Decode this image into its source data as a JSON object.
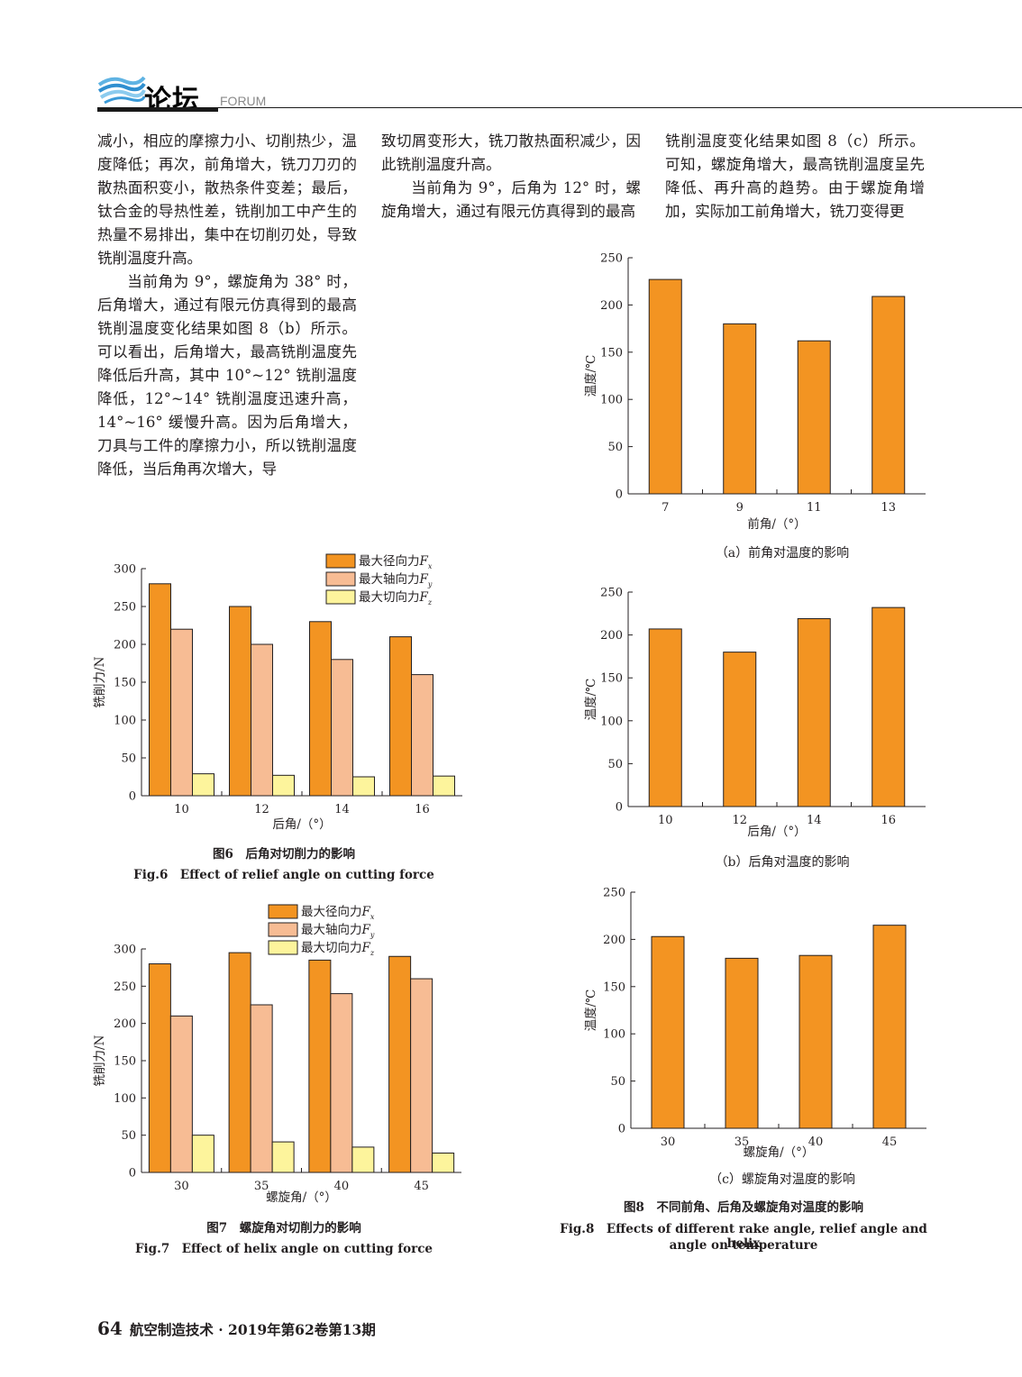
{
  "header": {
    "title": "论坛",
    "subtitle": "FORUM"
  },
  "text": {
    "col1_p1": "减小，相应的摩擦力小、切削热少，温度降低；再次，前角增大，铣刀刀刃的散热面积变小，散热条件变差；最后，钛合金的导热性差，铣削加工中产生的热量不易排出，集中在切削刃处，导致铣削温度升高。",
    "col1_p2": "当前角为 9°，螺旋角为 38° 时，后角增大，通过有限元仿真得到的最高铣削温度变化结果如图 8（b）所示。可以看出，后角增大，最高铣削温度先降低后升高，其中 10°~12° 铣削温度降低，12°~14° 铣削温度迅速升高，14°~16° 缓慢升高。因为后角增大，刀具与工件的摩擦力小，所以铣削温度降低，当后角再次增大，导",
    "col2_p1": "致切屑变形大，铣刀散热面积减少，因此铣削温度升高。",
    "col2_p2": "当前角为 9°，后角为 12° 时，螺旋角增大，通过有限元仿真得到的最高",
    "col3_p1": "铣削温度变化结果如图 8（c）所示。可知，螺旋角增大，最高铣削温度呈先降低、再升高的趋势。由于螺旋角增加，实际加工前角增大，铣刀变得更"
  },
  "colors": {
    "orange": "#f39422",
    "salmon": "#f7bc94",
    "yellow": "#fdf49c"
  },
  "chart_data": [
    {
      "id": "fig8a",
      "type": "bar",
      "categories": [
        "7",
        "9",
        "11",
        "13"
      ],
      "series": [
        {
          "values": [
            227,
            180,
            162,
            209
          ]
        }
      ],
      "ylim": [
        0,
        250
      ],
      "yticks": [
        0,
        50,
        100,
        150,
        200,
        250
      ],
      "ylabel": "温度/℃",
      "xlabel": "前角/（°）",
      "caption": "（a）前角对温度的影响"
    },
    {
      "id": "fig8b",
      "type": "bar",
      "categories": [
        "10",
        "12",
        "14",
        "16"
      ],
      "series": [
        {
          "values": [
            207,
            180,
            219,
            232
          ]
        }
      ],
      "ylim": [
        0,
        250
      ],
      "yticks": [
        0,
        50,
        100,
        150,
        200,
        250
      ],
      "ylabel": "温度/℃",
      "xlabel": "后角/（°）",
      "caption": "（b）后角对温度的影响"
    },
    {
      "id": "fig8c",
      "type": "bar",
      "categories": [
        "30",
        "35",
        "40",
        "45"
      ],
      "series": [
        {
          "values": [
            203,
            180,
            183,
            215
          ]
        }
      ],
      "ylim": [
        0,
        250
      ],
      "yticks": [
        0,
        50,
        100,
        150,
        200,
        250
      ],
      "ylabel": "温度/℃",
      "xlabel": "螺旋角/（°）",
      "caption": "（c）螺旋角对温度的影响"
    },
    {
      "id": "fig6",
      "type": "bar",
      "categories": [
        "10",
        "12",
        "14",
        "16"
      ],
      "series": [
        {
          "name": "最大径向力Fx",
          "label": "最大径向力",
          "sub": "x",
          "values": [
            280,
            250,
            230,
            210
          ]
        },
        {
          "name": "最大轴向力Fy",
          "label": "最大轴向力",
          "sub": "y",
          "values": [
            220,
            200,
            180,
            160
          ]
        },
        {
          "name": "最大切向力Fz",
          "label": "最大切向力",
          "sub": "z",
          "values": [
            29,
            27,
            25,
            26
          ]
        }
      ],
      "ylim": [
        0,
        300
      ],
      "yticks": [
        0,
        50,
        100,
        150,
        200,
        250,
        300
      ],
      "ylabel": "铣削力/N",
      "xlabel": "后角/（°）",
      "legend": "top-right"
    },
    {
      "id": "fig7",
      "type": "bar",
      "categories": [
        "30",
        "35",
        "40",
        "45"
      ],
      "series": [
        {
          "name": "最大径向力Fx",
          "label": "最大径向力",
          "sub": "x",
          "values": [
            280,
            295,
            285,
            290
          ]
        },
        {
          "name": "最大轴向力Fy",
          "label": "最大轴向力",
          "sub": "y",
          "values": [
            210,
            225,
            240,
            260
          ]
        },
        {
          "name": "最大切向力Fz",
          "label": "最大切向力",
          "sub": "z",
          "values": [
            50,
            41,
            34,
            26
          ]
        }
      ],
      "ylim": [
        0,
        300
      ],
      "yticks": [
        0,
        50,
        100,
        150,
        200,
        250,
        300
      ],
      "ylabel": "铣削力/N",
      "xlabel": "螺旋角/（°）",
      "legend": "top-right"
    }
  ],
  "captions": {
    "fig6_cn": "图6　后角对切削力的影响",
    "fig6_en": "Fig.6　Effect of relief angle on cutting force",
    "fig7_cn": "图7　螺旋角对切削力的影响",
    "fig7_en": "Fig.7　Effect of helix angle on cutting force",
    "fig8_cn": "图8　不同前角、后角及螺旋角对温度的影响",
    "fig8_en_1": "Fig.8　Effects of different rake angle, relief angle and helix",
    "fig8_en_2": "angle on temperature"
  },
  "footer": {
    "page": "64",
    "journal": "航空制造技术 · 2019年第62卷第13期"
  }
}
